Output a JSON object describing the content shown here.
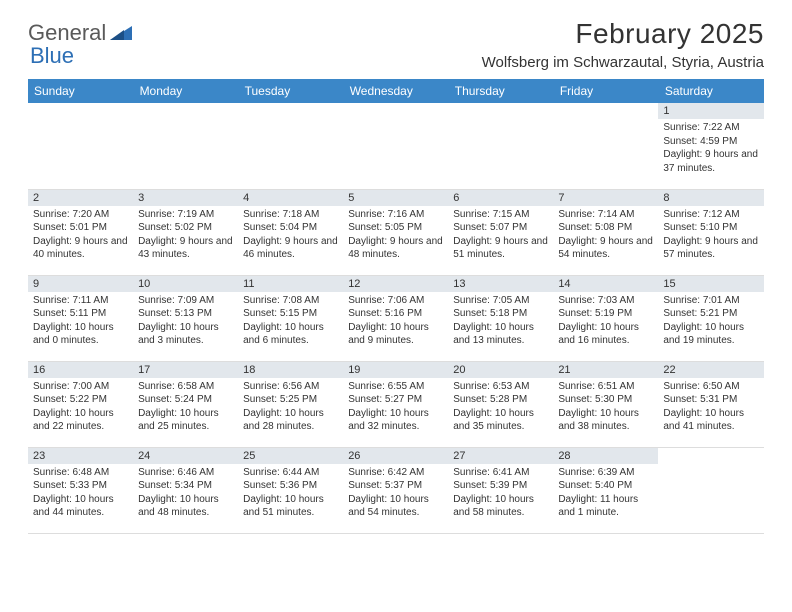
{
  "logo": {
    "text1": "General",
    "text2": "Blue"
  },
  "title": "February 2025",
  "location": "Wolfsberg im Schwarzautal, Styria, Austria",
  "colors": {
    "header_bg": "#3b87c8",
    "header_text": "#ffffff",
    "daynum_bg": "#e2e7ec",
    "text": "#333333",
    "logo_gray": "#5a5a5a",
    "logo_blue": "#2d6fb5",
    "grid_line": "#c8c8c8",
    "page_bg": "#ffffff"
  },
  "day_headers": [
    "Sunday",
    "Monday",
    "Tuesday",
    "Wednesday",
    "Thursday",
    "Friday",
    "Saturday"
  ],
  "weeks": [
    [
      {
        "n": "",
        "sr": "",
        "ss": "",
        "dl": ""
      },
      {
        "n": "",
        "sr": "",
        "ss": "",
        "dl": ""
      },
      {
        "n": "",
        "sr": "",
        "ss": "",
        "dl": ""
      },
      {
        "n": "",
        "sr": "",
        "ss": "",
        "dl": ""
      },
      {
        "n": "",
        "sr": "",
        "ss": "",
        "dl": ""
      },
      {
        "n": "",
        "sr": "",
        "ss": "",
        "dl": ""
      },
      {
        "n": "1",
        "sr": "Sunrise: 7:22 AM",
        "ss": "Sunset: 4:59 PM",
        "dl": "Daylight: 9 hours and 37 minutes."
      }
    ],
    [
      {
        "n": "2",
        "sr": "Sunrise: 7:20 AM",
        "ss": "Sunset: 5:01 PM",
        "dl": "Daylight: 9 hours and 40 minutes."
      },
      {
        "n": "3",
        "sr": "Sunrise: 7:19 AM",
        "ss": "Sunset: 5:02 PM",
        "dl": "Daylight: 9 hours and 43 minutes."
      },
      {
        "n": "4",
        "sr": "Sunrise: 7:18 AM",
        "ss": "Sunset: 5:04 PM",
        "dl": "Daylight: 9 hours and 46 minutes."
      },
      {
        "n": "5",
        "sr": "Sunrise: 7:16 AM",
        "ss": "Sunset: 5:05 PM",
        "dl": "Daylight: 9 hours and 48 minutes."
      },
      {
        "n": "6",
        "sr": "Sunrise: 7:15 AM",
        "ss": "Sunset: 5:07 PM",
        "dl": "Daylight: 9 hours and 51 minutes."
      },
      {
        "n": "7",
        "sr": "Sunrise: 7:14 AM",
        "ss": "Sunset: 5:08 PM",
        "dl": "Daylight: 9 hours and 54 minutes."
      },
      {
        "n": "8",
        "sr": "Sunrise: 7:12 AM",
        "ss": "Sunset: 5:10 PM",
        "dl": "Daylight: 9 hours and 57 minutes."
      }
    ],
    [
      {
        "n": "9",
        "sr": "Sunrise: 7:11 AM",
        "ss": "Sunset: 5:11 PM",
        "dl": "Daylight: 10 hours and 0 minutes."
      },
      {
        "n": "10",
        "sr": "Sunrise: 7:09 AM",
        "ss": "Sunset: 5:13 PM",
        "dl": "Daylight: 10 hours and 3 minutes."
      },
      {
        "n": "11",
        "sr": "Sunrise: 7:08 AM",
        "ss": "Sunset: 5:15 PM",
        "dl": "Daylight: 10 hours and 6 minutes."
      },
      {
        "n": "12",
        "sr": "Sunrise: 7:06 AM",
        "ss": "Sunset: 5:16 PM",
        "dl": "Daylight: 10 hours and 9 minutes."
      },
      {
        "n": "13",
        "sr": "Sunrise: 7:05 AM",
        "ss": "Sunset: 5:18 PM",
        "dl": "Daylight: 10 hours and 13 minutes."
      },
      {
        "n": "14",
        "sr": "Sunrise: 7:03 AM",
        "ss": "Sunset: 5:19 PM",
        "dl": "Daylight: 10 hours and 16 minutes."
      },
      {
        "n": "15",
        "sr": "Sunrise: 7:01 AM",
        "ss": "Sunset: 5:21 PM",
        "dl": "Daylight: 10 hours and 19 minutes."
      }
    ],
    [
      {
        "n": "16",
        "sr": "Sunrise: 7:00 AM",
        "ss": "Sunset: 5:22 PM",
        "dl": "Daylight: 10 hours and 22 minutes."
      },
      {
        "n": "17",
        "sr": "Sunrise: 6:58 AM",
        "ss": "Sunset: 5:24 PM",
        "dl": "Daylight: 10 hours and 25 minutes."
      },
      {
        "n": "18",
        "sr": "Sunrise: 6:56 AM",
        "ss": "Sunset: 5:25 PM",
        "dl": "Daylight: 10 hours and 28 minutes."
      },
      {
        "n": "19",
        "sr": "Sunrise: 6:55 AM",
        "ss": "Sunset: 5:27 PM",
        "dl": "Daylight: 10 hours and 32 minutes."
      },
      {
        "n": "20",
        "sr": "Sunrise: 6:53 AM",
        "ss": "Sunset: 5:28 PM",
        "dl": "Daylight: 10 hours and 35 minutes."
      },
      {
        "n": "21",
        "sr": "Sunrise: 6:51 AM",
        "ss": "Sunset: 5:30 PM",
        "dl": "Daylight: 10 hours and 38 minutes."
      },
      {
        "n": "22",
        "sr": "Sunrise: 6:50 AM",
        "ss": "Sunset: 5:31 PM",
        "dl": "Daylight: 10 hours and 41 minutes."
      }
    ],
    [
      {
        "n": "23",
        "sr": "Sunrise: 6:48 AM",
        "ss": "Sunset: 5:33 PM",
        "dl": "Daylight: 10 hours and 44 minutes."
      },
      {
        "n": "24",
        "sr": "Sunrise: 6:46 AM",
        "ss": "Sunset: 5:34 PM",
        "dl": "Daylight: 10 hours and 48 minutes."
      },
      {
        "n": "25",
        "sr": "Sunrise: 6:44 AM",
        "ss": "Sunset: 5:36 PM",
        "dl": "Daylight: 10 hours and 51 minutes."
      },
      {
        "n": "26",
        "sr": "Sunrise: 6:42 AM",
        "ss": "Sunset: 5:37 PM",
        "dl": "Daylight: 10 hours and 54 minutes."
      },
      {
        "n": "27",
        "sr": "Sunrise: 6:41 AM",
        "ss": "Sunset: 5:39 PM",
        "dl": "Daylight: 10 hours and 58 minutes."
      },
      {
        "n": "28",
        "sr": "Sunrise: 6:39 AM",
        "ss": "Sunset: 5:40 PM",
        "dl": "Daylight: 11 hours and 1 minute."
      },
      {
        "n": "",
        "sr": "",
        "ss": "",
        "dl": ""
      }
    ]
  ]
}
